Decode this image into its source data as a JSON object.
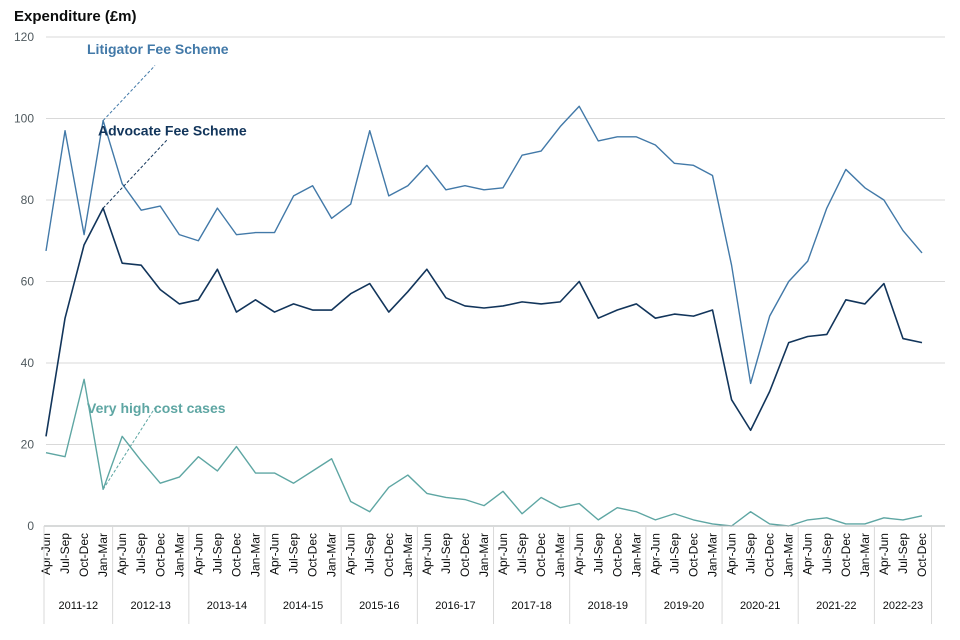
{
  "chart_data": {
    "type": "line",
    "ylabel": "Expenditure (£m)",
    "ylim": [
      0,
      120
    ],
    "yticks": [
      0,
      20,
      40,
      60,
      80,
      100,
      120
    ],
    "grid": true,
    "categories": [
      "Apr-Jun",
      "Jul-Sep",
      "Oct-Dec",
      "Jan-Mar",
      "Apr-Jun",
      "Jul-Sep",
      "Oct-Dec",
      "Jan-Mar",
      "Apr-Jun",
      "Jul-Sep",
      "Oct-Dec",
      "Jan-Mar",
      "Apr-Jun",
      "Jul-Sep",
      "Oct-Dec",
      "Jan-Mar",
      "Apr-Jun",
      "Jul-Sep",
      "Oct-Dec",
      "Jan-Mar",
      "Apr-Jun",
      "Jul-Sep",
      "Oct-Dec",
      "Jan-Mar",
      "Apr-Jun",
      "Jul-Sep",
      "Oct-Dec",
      "Jan-Mar",
      "Apr-Jun",
      "Jul-Sep",
      "Oct-Dec",
      "Jan-Mar",
      "Apr-Jun",
      "Jul-Sep",
      "Oct-Dec",
      "Jan-Mar",
      "Apr-Jun",
      "Jul-Sep",
      "Oct-Dec",
      "Jan-Mar",
      "Apr-Jun",
      "Jul-Sep",
      "Oct-Dec",
      "Jan-Mar",
      "Apr-Jun",
      "Jul-Sep",
      "Oct-Dec"
    ],
    "financial_years": [
      {
        "label": "2011-12",
        "count": 4
      },
      {
        "label": "2012-13",
        "count": 4
      },
      {
        "label": "2013-14",
        "count": 4
      },
      {
        "label": "2014-15",
        "count": 4
      },
      {
        "label": "2015-16",
        "count": 4
      },
      {
        "label": "2016-17",
        "count": 4
      },
      {
        "label": "2017-18",
        "count": 4
      },
      {
        "label": "2018-19",
        "count": 4
      },
      {
        "label": "2019-20",
        "count": 4
      },
      {
        "label": "2020-21",
        "count": 4
      },
      {
        "label": "2021-22",
        "count": 4
      },
      {
        "label": "2022-23",
        "count": 3
      }
    ],
    "series": [
      {
        "name": "Litigator Fee Scheme",
        "color": "#4279a8",
        "values": [
          67.5,
          97,
          71.5,
          99.5,
          84,
          77.5,
          78.5,
          71.5,
          70,
          78,
          71.5,
          72,
          72,
          81,
          83.5,
          75.5,
          79,
          97,
          81,
          83.5,
          88.5,
          82.5,
          83.5,
          82.5,
          83,
          91,
          92,
          98,
          103,
          94.5,
          95.5,
          95.5,
          93.5,
          89,
          88.5,
          86,
          64,
          35,
          51.5,
          60,
          65,
          78,
          87.5,
          83,
          80,
          72.5,
          67
        ]
      },
      {
        "name": "Advocate Fee Scheme",
        "color": "#12355b",
        "values": [
          22,
          51,
          69,
          78,
          64.5,
          64,
          58,
          54.5,
          55.5,
          63,
          52.5,
          55.5,
          52.5,
          54.5,
          53,
          53,
          57,
          59.5,
          52.5,
          57.5,
          63,
          56,
          54,
          53.5,
          54,
          55,
          54.5,
          55,
          60,
          51,
          53,
          54.5,
          51,
          52,
          51.5,
          53,
          31,
          23.5,
          33,
          45,
          46.5,
          47,
          55.5,
          54.5,
          59.5,
          46,
          45
        ]
      },
      {
        "name": "Very high cost cases",
        "color": "#5ea6a3",
        "values": [
          18,
          17,
          36,
          9,
          22,
          16,
          10.5,
          12,
          17,
          13.5,
          19.5,
          13,
          13,
          10.5,
          13.5,
          16.5,
          6,
          3.5,
          9.5,
          12.5,
          8,
          7,
          6.5,
          5,
          8.5,
          3,
          7,
          4.5,
          5.5,
          1.5,
          4.5,
          3.5,
          1.5,
          3,
          1.5,
          0.5,
          0,
          3.5,
          0.5,
          0,
          1.5,
          2,
          0.5,
          0.5,
          2,
          1.5,
          2.5
        ]
      }
    ],
    "annotations": [
      {
        "text": "Litigator Fee Scheme",
        "series": 0,
        "point": 3,
        "label_y": 117,
        "label_x": 87,
        "line_end_y": 113
      },
      {
        "text": "Advocate Fee Scheme",
        "series": 1,
        "point": 3,
        "label_y": 97,
        "label_x": 98,
        "line_end_y": 95
      },
      {
        "text": "Very high cost cases",
        "series": 2,
        "point": 3,
        "label_y": 29,
        "label_x": 87,
        "line_end_y": 29
      }
    ]
  }
}
